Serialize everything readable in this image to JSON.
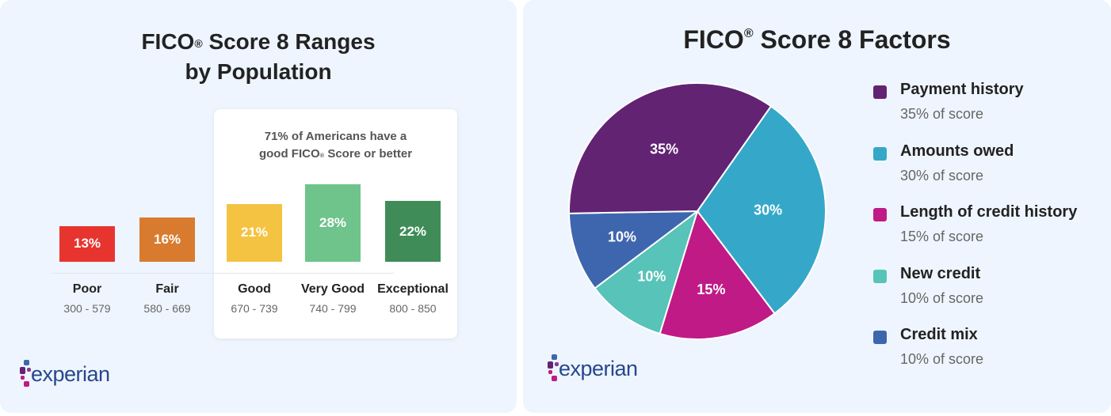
{
  "chart_data": [
    {
      "type": "bar",
      "title": "FICO® Score 8 Ranges by Population",
      "title_lines": [
        "FICO",
        "Score 8 Ranges",
        "by Population"
      ],
      "annotation": "71% of Americans have a good FICO® Score or better",
      "annotation_lines": [
        "71% of Americans have a",
        "good FICO",
        "Score or better"
      ],
      "categories": [
        "Poor",
        "Fair",
        "Good",
        "Very Good",
        "Exceptional"
      ],
      "ranges": [
        "300 - 579",
        "580 - 669",
        "670 - 739",
        "740 - 799",
        "800 - 850"
      ],
      "values": [
        13,
        16,
        21,
        28,
        22
      ],
      "labels": [
        "13%",
        "16%",
        "21%",
        "28%",
        "22%"
      ],
      "colors": [
        "#e8342f",
        "#d97b2f",
        "#f5c342",
        "#6ec48a",
        "#3f8c58"
      ]
    },
    {
      "type": "pie",
      "title": "FICO® Score 8 Factors",
      "title_parts": [
        "FICO",
        "Score 8 Factors"
      ],
      "slices": [
        {
          "name": "Payment history",
          "value": 35,
          "label": "35%",
          "sub": "35% of score",
          "color": "#622373"
        },
        {
          "name": "Amounts owed",
          "value": 30,
          "label": "30%",
          "sub": "30% of score",
          "color": "#35a8c9"
        },
        {
          "name": "Length of credit history",
          "value": 15,
          "label": "15%",
          "sub": "15% of score",
          "color": "#c01a87"
        },
        {
          "name": "New credit",
          "value": 10,
          "label": "10%",
          "sub": "10% of score",
          "color": "#58c3b8"
        },
        {
          "name": "Credit mix",
          "value": 10,
          "label": "10%",
          "sub": "10% of score",
          "color": "#3e66ae"
        }
      ],
      "legend_placement": "right"
    }
  ],
  "brand": {
    "logo_text": "experian",
    "registered": "®"
  }
}
